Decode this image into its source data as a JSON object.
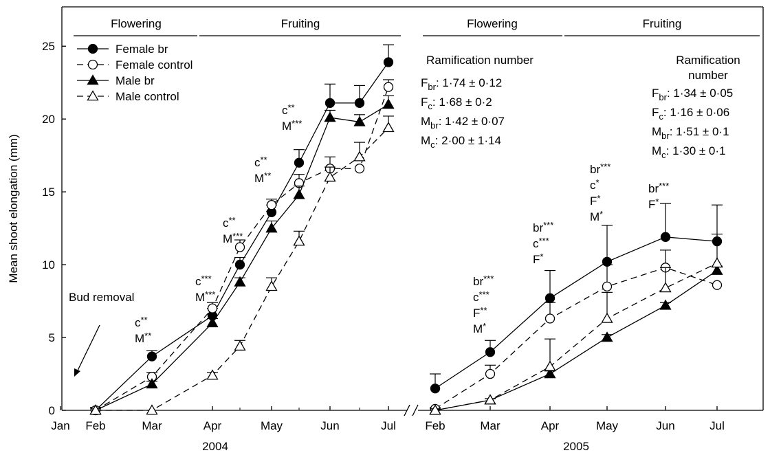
{
  "chart_data": {
    "type": "line",
    "ylabel": "Mean shoot elongation (mm)",
    "ylim": [
      0,
      27.7
    ],
    "yticks": [
      "0",
      "5",
      "10",
      "15",
      "20",
      "25"
    ],
    "years": [
      {
        "label": "2004",
        "months": [
          "Jan",
          "Feb",
          "Mar",
          "Apr",
          "May",
          "Jun",
          "Jul"
        ]
      },
      {
        "label": "2005",
        "months": [
          "Feb",
          "Mar",
          "Apr",
          "May",
          "Jun",
          "Jul"
        ]
      }
    ],
    "phases": [
      {
        "label": "Flowering",
        "year": "2004"
      },
      {
        "label": "Fruiting",
        "year": "2004"
      },
      {
        "label": "Flowering",
        "year": "2005"
      },
      {
        "label": "Fruiting",
        "year": "2005"
      }
    ],
    "series": [
      {
        "name": "Female br",
        "marker": "circle-filled",
        "dash": "solid",
        "points_2004": [
          [
            "Feb",
            0.0,
            0.2
          ],
          [
            "Mar",
            3.7,
            0.4
          ],
          [
            "Apr",
            6.5,
            0.5
          ],
          [
            "Apr 15",
            10.0,
            0.5
          ],
          [
            "May",
            13.6,
            0.5
          ],
          [
            "May 15",
            17.0,
            0.9
          ],
          [
            "Jun",
            21.1,
            1.3
          ],
          [
            "Jun 15",
            21.1,
            1.2
          ],
          [
            "Jul",
            23.9,
            1.2
          ]
        ],
        "points_2005": [
          [
            "Feb",
            1.5,
            1.0
          ],
          [
            "Mar",
            4.0,
            0.8
          ],
          [
            "Apr",
            7.7,
            1.9
          ],
          [
            "May",
            10.2,
            2.5
          ],
          [
            "Jun",
            11.9,
            2.3
          ],
          [
            "Jul",
            11.6,
            0.5
          ]
        ]
      },
      {
        "name": "Female control",
        "marker": "circle-open",
        "dash": "dashed",
        "points_2004": [
          [
            "Feb",
            0.0,
            0.2
          ],
          [
            "Mar",
            2.3,
            0.3
          ],
          [
            "Apr",
            7.0,
            0.4
          ],
          [
            "Apr 15",
            11.2,
            0.5
          ],
          [
            "May",
            14.1,
            0.4
          ],
          [
            "May 15",
            15.6,
            0.6
          ],
          [
            "Jun",
            16.6,
            0.8
          ],
          [
            "Jun 15",
            16.6,
            0.0
          ],
          [
            "Jul",
            22.2,
            0.5
          ]
        ],
        "points_2005": [
          [
            "Feb",
            0.1,
            0.1
          ],
          [
            "Mar",
            2.5,
            0.6
          ],
          [
            "Apr",
            6.3,
            1.1
          ],
          [
            "May",
            8.5,
            1.5
          ],
          [
            "Jun",
            9.8,
            1.2
          ],
          [
            "Jul",
            8.6,
            0.0
          ]
        ]
      },
      {
        "name": "Male br",
        "marker": "triangle-filled",
        "dash": "solid",
        "points_2004": [
          [
            "Feb",
            0.0,
            0.1
          ],
          [
            "Mar",
            1.8,
            0.2
          ],
          [
            "Apr",
            6.0,
            0.3
          ],
          [
            "Apr 15",
            8.8,
            0.3
          ],
          [
            "May",
            12.5,
            0.5
          ],
          [
            "May 15",
            14.8,
            0.6
          ],
          [
            "Jun",
            20.1,
            0.5
          ],
          [
            "Jun 15",
            19.8,
            0.5
          ],
          [
            "Jul",
            21.0,
            0.6
          ]
        ],
        "points_2005": [
          [
            "Feb",
            0.0,
            0.1
          ],
          [
            "Mar",
            0.7,
            0.1
          ],
          [
            "Apr",
            2.5,
            0.2
          ],
          [
            "May",
            5.0,
            0.2
          ],
          [
            "Jun",
            7.2,
            0.2
          ],
          [
            "Jul",
            9.6,
            0.3
          ]
        ]
      },
      {
        "name": "Male control",
        "marker": "triangle-open",
        "dash": "dashed",
        "points_2004": [
          [
            "Feb",
            0.0,
            0.0
          ],
          [
            "Mar",
            0.0,
            0.0
          ],
          [
            "Apr",
            2.4,
            0.2
          ],
          [
            "Apr 15",
            4.4,
            0.4
          ],
          [
            "May",
            8.5,
            0.6
          ],
          [
            "May 15",
            11.6,
            0.7
          ],
          [
            "Jun",
            16.0,
            0.7
          ],
          [
            "Jun 15",
            17.4,
            1.0
          ],
          [
            "Jul",
            19.4,
            0.8
          ]
        ],
        "points_2005": [
          [
            "Feb",
            0.0,
            0.1
          ],
          [
            "Mar",
            0.7,
            0.1
          ],
          [
            "Apr",
            3.0,
            1.9
          ],
          [
            "May",
            6.3,
            1.8
          ],
          [
            "Jun",
            8.4,
            1.4
          ],
          [
            "Jul",
            10.1,
            4.0
          ]
        ]
      }
    ],
    "significance": [
      {
        "year": "2004",
        "month": "Mar",
        "lines": [
          "c**",
          "M**"
        ]
      },
      {
        "year": "2004",
        "month": "Apr",
        "lines": [
          "c***",
          "M***"
        ]
      },
      {
        "year": "2004",
        "month": "Apr 15",
        "lines": [
          "c**",
          "M***"
        ]
      },
      {
        "year": "2004",
        "month": "May",
        "lines": [
          "c**",
          "M**"
        ]
      },
      {
        "year": "2004",
        "month": "May 15",
        "lines": [
          "c**",
          "M***"
        ]
      },
      {
        "year": "2005",
        "month": "Mar",
        "lines": [
          "br***",
          "c***",
          "F**",
          "M*"
        ]
      },
      {
        "year": "2005",
        "month": "Apr",
        "lines": [
          "br***",
          "c***",
          "F*"
        ]
      },
      {
        "year": "2005",
        "month": "May",
        "lines": [
          "br***",
          "c*",
          "F*",
          "M*"
        ]
      },
      {
        "year": "2005",
        "month": "Jun",
        "lines": [
          "br***",
          "F*"
        ]
      }
    ],
    "ramification": [
      {
        "year": "2004",
        "title": [
          "Ramification number"
        ],
        "rows": [
          {
            "base": "F",
            "sub": "br",
            "value": ": 1·74 ± 0·12"
          },
          {
            "base": "F",
            "sub": "c",
            "value": ": 1·68 ± 0·2"
          },
          {
            "base": "M",
            "sub": "br",
            "value": ": 1·42 ± 0·07"
          },
          {
            "base": "M",
            "sub": "c",
            "value": ": 2·00 ± 1·14"
          }
        ]
      },
      {
        "year": "2005",
        "title": [
          "Ramification",
          "number"
        ],
        "rows": [
          {
            "base": "F",
            "sub": "br",
            "value": ": 1·34 ± 0·05"
          },
          {
            "base": "F",
            "sub": "c",
            "value": ": 1·16 ± 0·06"
          },
          {
            "base": "M",
            "sub": "br",
            "value": ": 1·51 ± 0·1"
          },
          {
            "base": "M",
            "sub": "c",
            "value": ": 1·30 ± 0·1"
          }
        ]
      }
    ],
    "annotation": "Bud removal",
    "legend_position": "top-left"
  }
}
